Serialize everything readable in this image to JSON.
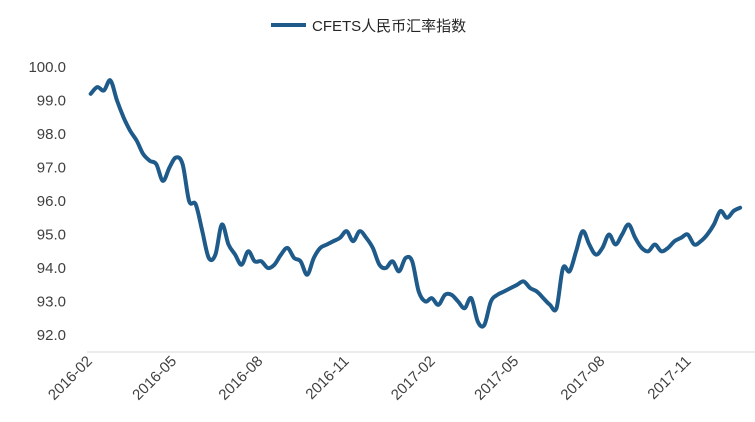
{
  "chart_data": {
    "type": "line",
    "title": "",
    "xlabel": "",
    "ylabel": "",
    "ylim": [
      92.0,
      100.0
    ],
    "yticks": [
      "100.0",
      "99.0",
      "98.0",
      "97.0",
      "96.0",
      "95.0",
      "94.0",
      "93.0",
      "92.0"
    ],
    "xticks": [
      "2016-02",
      "2016-05",
      "2016-08",
      "2016-11",
      "2017-02",
      "2017-05",
      "2017-08",
      "2017-11"
    ],
    "grid": false,
    "legend_position": "top-center",
    "series": [
      {
        "name": "CFETS人民币汇率指数",
        "color": "#1f5b8a",
        "x": [
          "2016-02-05",
          "2016-02-12",
          "2016-02-19",
          "2016-02-26",
          "2016-03-04",
          "2016-03-11",
          "2016-03-18",
          "2016-03-25",
          "2016-04-01",
          "2016-04-08",
          "2016-04-15",
          "2016-04-22",
          "2016-04-29",
          "2016-05-06",
          "2016-05-13",
          "2016-05-20",
          "2016-05-27",
          "2016-06-03",
          "2016-06-10",
          "2016-06-17",
          "2016-06-24",
          "2016-07-01",
          "2016-07-08",
          "2016-07-15",
          "2016-07-22",
          "2016-07-29",
          "2016-08-05",
          "2016-08-12",
          "2016-08-19",
          "2016-08-26",
          "2016-09-02",
          "2016-09-09",
          "2016-09-16",
          "2016-09-23",
          "2016-09-30",
          "2016-10-07",
          "2016-10-14",
          "2016-10-21",
          "2016-10-28",
          "2016-11-04",
          "2016-11-11",
          "2016-11-18",
          "2016-11-25",
          "2016-12-02",
          "2016-12-09",
          "2016-12-16",
          "2016-12-23",
          "2016-12-30",
          "2017-01-06",
          "2017-01-13",
          "2017-01-20",
          "2017-01-27",
          "2017-02-03",
          "2017-02-10",
          "2017-02-17",
          "2017-02-24",
          "2017-03-03",
          "2017-03-10",
          "2017-03-17",
          "2017-03-24",
          "2017-03-31",
          "2017-04-07",
          "2017-04-14",
          "2017-04-21",
          "2017-04-28",
          "2017-05-05",
          "2017-05-12",
          "2017-05-19",
          "2017-05-26",
          "2017-06-02",
          "2017-06-09",
          "2017-06-16",
          "2017-06-23",
          "2017-06-30",
          "2017-07-07",
          "2017-07-14",
          "2017-07-21",
          "2017-07-28",
          "2017-08-04",
          "2017-08-11",
          "2017-08-18",
          "2017-08-25",
          "2017-09-01",
          "2017-09-08",
          "2017-09-15",
          "2017-09-22",
          "2017-09-29",
          "2017-10-06",
          "2017-10-13",
          "2017-10-20",
          "2017-10-27",
          "2017-11-03",
          "2017-11-10",
          "2017-11-17",
          "2017-11-24",
          "2017-12-01",
          "2017-12-08",
          "2017-12-15",
          "2017-12-22",
          "2017-12-29"
        ],
        "values": [
          99.2,
          99.4,
          99.3,
          99.6,
          99.0,
          98.5,
          98.1,
          97.8,
          97.4,
          97.2,
          97.1,
          96.6,
          97.0,
          97.3,
          97.1,
          96.0,
          95.9,
          95.1,
          94.3,
          94.4,
          95.3,
          94.7,
          94.4,
          94.1,
          94.5,
          94.2,
          94.2,
          94.0,
          94.1,
          94.4,
          94.6,
          94.3,
          94.2,
          93.8,
          94.3,
          94.6,
          94.7,
          94.8,
          94.9,
          95.1,
          94.8,
          95.1,
          94.9,
          94.6,
          94.1,
          94.0,
          94.2,
          93.9,
          94.3,
          94.2,
          93.3,
          93.0,
          93.1,
          92.9,
          93.2,
          93.2,
          93.0,
          92.8,
          93.1,
          92.4,
          92.3,
          93.0,
          93.2,
          93.3,
          93.4,
          93.5,
          93.6,
          93.4,
          93.3,
          93.1,
          92.9,
          92.8,
          94.0,
          93.9,
          94.5,
          95.1,
          94.7,
          94.4,
          94.6,
          95.0,
          94.7,
          95.0,
          95.3,
          94.9,
          94.6,
          94.5,
          94.7,
          94.5,
          94.6,
          94.8,
          94.9,
          95.0,
          94.7,
          94.8,
          95.0,
          95.3,
          95.7,
          95.5,
          95.7,
          95.8
        ]
      }
    ]
  }
}
